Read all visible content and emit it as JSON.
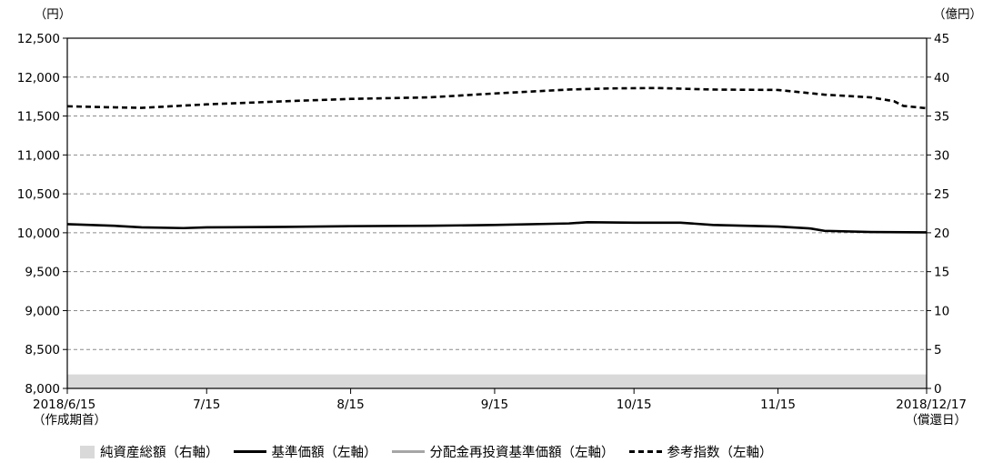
{
  "chart_data": {
    "type": "line",
    "left_unit": "（円）",
    "right_unit": "（億円）",
    "y_left": {
      "min": 8000,
      "max": 12500,
      "ticks": [
        "8,000",
        "8,500",
        "9,000",
        "9,500",
        "10,000",
        "10,500",
        "11,000",
        "11,500",
        "12,000",
        "12,500"
      ]
    },
    "y_right": {
      "min": 0,
      "max": 45,
      "ticks": [
        "0",
        "5",
        "10",
        "15",
        "20",
        "25",
        "30",
        "35",
        "40",
        "45"
      ]
    },
    "x_ticks": [
      {
        "label": "2018/6/15",
        "sub": "（作成期首）",
        "date": "2018-06-15"
      },
      {
        "label": "7/15",
        "sub": "",
        "date": "2018-07-15"
      },
      {
        "label": "8/15",
        "sub": "",
        "date": "2018-08-15"
      },
      {
        "label": "9/15",
        "sub": "",
        "date": "2018-09-15"
      },
      {
        "label": "10/15",
        "sub": "",
        "date": "2018-10-15"
      },
      {
        "label": "11/15",
        "sub": "",
        "date": "2018-11-15"
      },
      {
        "label": "2018/12/17",
        "sub": "（償還日）",
        "date": "2018-12-17"
      }
    ],
    "x_range": [
      "2018-06-15",
      "2018-12-17"
    ],
    "grid": true,
    "legend_position": "bottom",
    "series": [
      {
        "name": "純資産総額（右軸）",
        "type": "area",
        "axis": "right",
        "color": "#d9d9d9",
        "x": [
          "2018-06-15",
          "2018-12-17"
        ],
        "values": [
          1.8,
          1.8
        ]
      },
      {
        "name": "基準価額（左軸）",
        "type": "line",
        "axis": "left",
        "color": "#000000",
        "style": "solid",
        "x": [
          "2018-06-15",
          "2018-06-25",
          "2018-07-01",
          "2018-07-10",
          "2018-07-15",
          "2018-08-01",
          "2018-08-15",
          "2018-09-01",
          "2018-09-15",
          "2018-10-01",
          "2018-10-05",
          "2018-10-15",
          "2018-10-25",
          "2018-11-01",
          "2018-11-15",
          "2018-11-22",
          "2018-11-25",
          "2018-12-05",
          "2018-12-17"
        ],
        "values": [
          10110,
          10090,
          10070,
          10060,
          10070,
          10075,
          10085,
          10090,
          10100,
          10120,
          10135,
          10130,
          10130,
          10100,
          10080,
          10055,
          10025,
          10010,
          10005
        ]
      },
      {
        "name": "分配金再投資基準価額（左軸）",
        "type": "line",
        "axis": "left",
        "color": "#a6a6a6",
        "style": "solid",
        "x": [],
        "values": []
      },
      {
        "name": "参考指数（左軸）",
        "type": "line",
        "axis": "left",
        "color": "#000000",
        "style": "dashed",
        "x": [
          "2018-06-15",
          "2018-06-22",
          "2018-07-01",
          "2018-07-15",
          "2018-08-01",
          "2018-08-15",
          "2018-09-01",
          "2018-09-15",
          "2018-10-01",
          "2018-10-10",
          "2018-10-20",
          "2018-11-01",
          "2018-11-15",
          "2018-11-20",
          "2018-11-25",
          "2018-12-05",
          "2018-12-10",
          "2018-12-12",
          "2018-12-17"
        ],
        "values": [
          11625,
          11615,
          11605,
          11650,
          11690,
          11720,
          11740,
          11790,
          11840,
          11855,
          11860,
          11840,
          11835,
          11805,
          11775,
          11740,
          11690,
          11630,
          11600
        ]
      }
    ]
  }
}
